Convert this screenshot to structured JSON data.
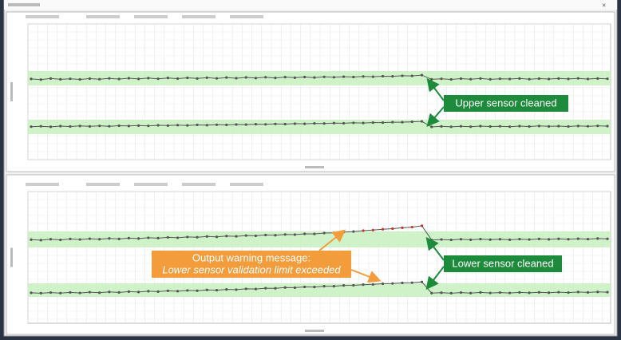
{
  "annotations": {
    "upper_cleaned": "Upper sensor cleaned",
    "warning_line1": "Output warning message:",
    "warning_line2": "Lower sensor validation limit exceeded",
    "lower_cleaned": "Lower sensor cleaned"
  },
  "charts": [
    {
      "ylim": [
        0,
        100
      ],
      "series": [
        {
          "color": "#555555",
          "band": [
            54.7,
            65.3
          ],
          "values": [
            59.5,
            59,
            59.8,
            59.2,
            59.6,
            59.1,
            59.7,
            59.3,
            59.9,
            59.4,
            60,
            59.5,
            60.1,
            59.6,
            60.2,
            59.7,
            60.3,
            59.8,
            60.4,
            59.9,
            60.5,
            60,
            60.6,
            60.1,
            60.7,
            60.2,
            60.8,
            60.4,
            60.9,
            60.5,
            61,
            60.7,
            61.1,
            60.9,
            61.3,
            61.1,
            61.5,
            61.4,
            61.8,
            61.7,
            62.3,
            59.2,
            59.6,
            59.1,
            59.7,
            59.3,
            59.8,
            59.2,
            59.6,
            59.4,
            59.8,
            59.3,
            59.7,
            59.4,
            59.8,
            59.5,
            59.9,
            59.4,
            59.8,
            59.6
          ]
        },
        {
          "color": "#555555",
          "band": [
            18.8,
            29.4
          ],
          "values": [
            24.3,
            24.6,
            24.2,
            24.7,
            24.4,
            24.8,
            24.5,
            24.9,
            24.6,
            25,
            24.8,
            25.1,
            24.9,
            25.3,
            25.1,
            25.4,
            25.2,
            25.6,
            25.4,
            25.7,
            25.6,
            25.9,
            25.8,
            26.1,
            26,
            26.3,
            26.2,
            26.5,
            26.4,
            26.7,
            26.6,
            26.9,
            26.8,
            27.1,
            27,
            27.3,
            27.3,
            27.6,
            27.6,
            27.9,
            28.2,
            24.1,
            24.5,
            24.2,
            24.6,
            24.3,
            24.7,
            24.4,
            24.6,
            24.3,
            24.7,
            24.4,
            24.8,
            24.5,
            24.7,
            24.4,
            24.8,
            24.6,
            24.9,
            24.7
          ]
        }
      ]
    },
    {
      "ylim": [
        0,
        100
      ],
      "highlight_color": "#c0392b",
      "highlight_start": 32,
      "series": [
        {
          "color": "#555555",
          "band": [
            57.6,
            69.7
          ],
          "values": [
            63.5,
            63.1,
            63.8,
            63.3,
            64,
            63.6,
            64.2,
            63.8,
            64.4,
            64,
            64.6,
            64.3,
            64.9,
            64.6,
            65.2,
            64.9,
            65.5,
            65.3,
            65.9,
            65.6,
            66.2,
            66,
            66.6,
            66.4,
            67,
            66.8,
            67.4,
            67.3,
            67.9,
            67.8,
            68.5,
            68.6,
            69.3,
            69.6,
            70.3,
            70.7,
            71.4,
            71.8,
            72.5,
            73,
            74,
            63.2,
            63.6,
            63.3,
            63.8,
            63.4,
            63.9,
            63.5,
            63.8,
            63.4,
            63.9,
            63.6,
            64,
            63.7,
            64.1,
            63.8,
            64.2,
            63.9,
            64.3,
            64.1
          ]
        },
        {
          "color": "#555555",
          "band": [
            20,
            30.3
          ],
          "values": [
            23.1,
            22.8,
            23.3,
            22.9,
            23.4,
            23,
            23.6,
            23.2,
            23.8,
            23.4,
            24,
            23.7,
            24.3,
            24,
            24.6,
            24.3,
            24.9,
            24.7,
            25.3,
            25.1,
            25.7,
            25.5,
            26.1,
            26,
            26.6,
            26.5,
            27.1,
            27,
            27.6,
            27.5,
            28.1,
            28.1,
            28.7,
            28.8,
            29.3,
            29.5,
            30,
            30.2,
            30.6,
            30.8,
            31.4,
            22.9,
            23.2,
            22.8,
            23.3,
            22.9,
            23.4,
            23,
            23.3,
            23,
            23.4,
            23.1,
            23.5,
            23.2,
            23.6,
            23.3,
            23.7,
            23.4,
            23.8,
            23.6
          ]
        }
      ]
    }
  ]
}
